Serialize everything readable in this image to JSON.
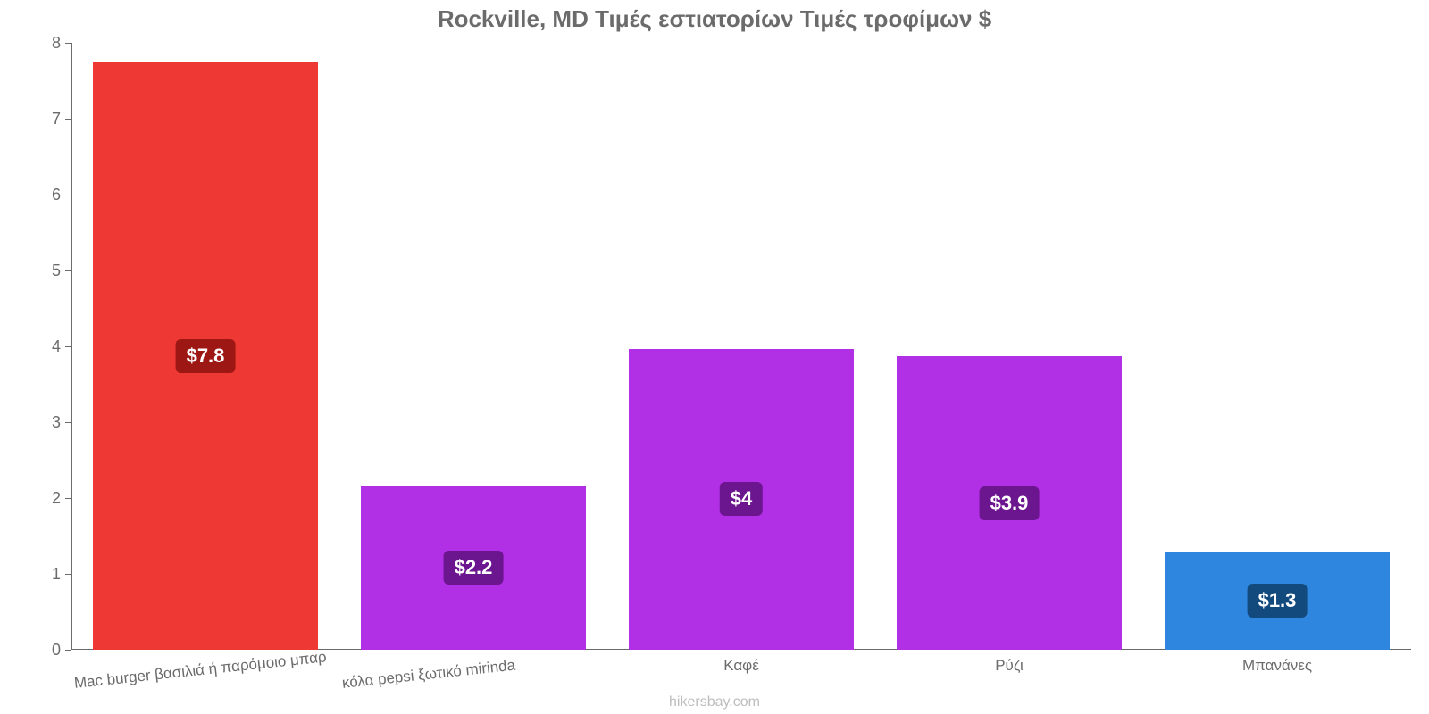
{
  "chart": {
    "type": "bar",
    "title": "Rockville, MD Τιμές εστιατορίων Τιμές τροφίμων $",
    "title_color": "#6b6b6b",
    "title_fontsize": 26,
    "background_color": "#ffffff",
    "axis_color": "#6b6b6b",
    "tick_label_fontsize": 18,
    "cat_label_fontsize": 17,
    "value_label_fontsize": 22,
    "ylim": [
      0,
      8
    ],
    "ytick_step": 1,
    "yticks": [
      0,
      1,
      2,
      3,
      4,
      5,
      6,
      7,
      8
    ],
    "bar_gap_ratio": 0.08,
    "categories": [
      {
        "label": "Mac burger βασιλιά ή παρόμοιο μπαρ",
        "value": 7.75,
        "display_value": "$7.8",
        "bar_color": "#ed3833",
        "badge_bg": "#9d1815",
        "label_rotated": true
      },
      {
        "label": "κόλα pepsi ξωτικό mirinda",
        "value": 2.17,
        "display_value": "$2.2",
        "bar_color": "#b12fe4",
        "badge_bg": "#6b158f",
        "label_rotated": true
      },
      {
        "label": "Καφέ",
        "value": 3.97,
        "display_value": "$4",
        "bar_color": "#b12fe4",
        "badge_bg": "#6b158f",
        "label_rotated": false
      },
      {
        "label": "Ρύζι",
        "value": 3.87,
        "display_value": "$3.9",
        "bar_color": "#b12fe4",
        "badge_bg": "#6b158f",
        "label_rotated": false
      },
      {
        "label": "Μπανάνες",
        "value": 1.3,
        "display_value": "$1.3",
        "bar_color": "#2e86de",
        "badge_bg": "#134a7e",
        "label_rotated": false
      }
    ],
    "footer": "hikersbay.com",
    "footer_color": "#bdbdbd"
  }
}
